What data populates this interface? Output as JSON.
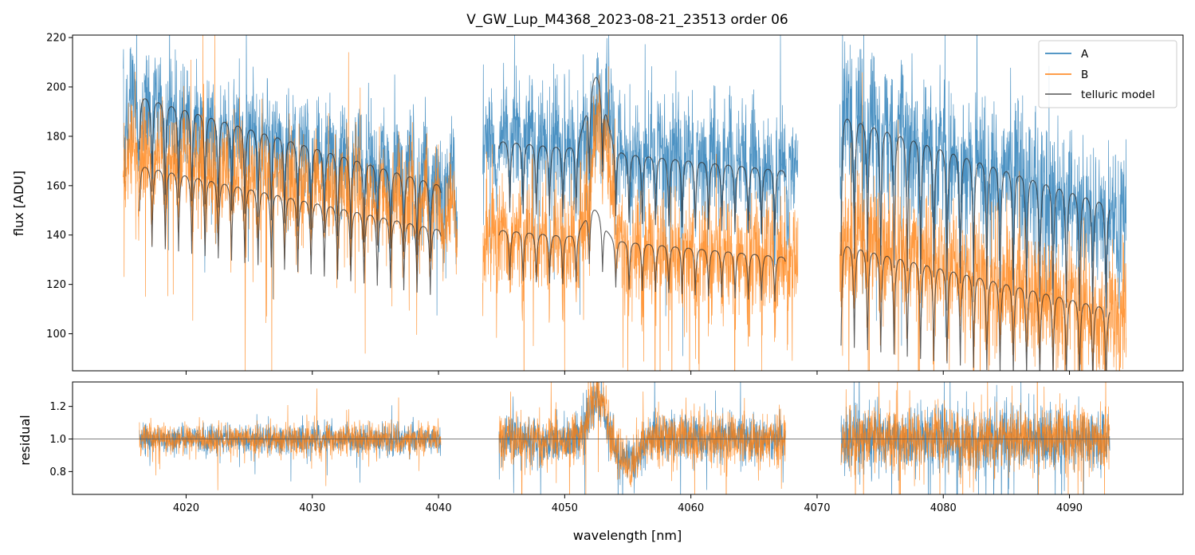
{
  "chart_data": [
    {
      "panel": "top",
      "type": "line",
      "title": "V_GW_Lup_M4368_2023-08-21_23513  order 06",
      "xlabel": "",
      "ylabel": "flux [ADU]",
      "xlim": [
        4011,
        4099
      ],
      "ylim": [
        85,
        221
      ],
      "yticks": [
        100,
        120,
        140,
        160,
        180,
        200,
        220
      ],
      "xticks": [
        4020,
        4030,
        4040,
        4050,
        4060,
        4070,
        4080,
        4090
      ],
      "xtick_labels_shown": false,
      "legend": {
        "position": "top-right",
        "entries": [
          "A",
          "B",
          "telluric model"
        ]
      },
      "colors": {
        "A": "#1f77b4",
        "B": "#ff7f0e",
        "model": "#333333"
      },
      "series": [
        {
          "name": "A",
          "segments": [
            {
              "x_start": 4015.0,
              "x_end": 4041.5,
              "level_start": 195,
              "level_end": 163,
              "noise": 11
            },
            {
              "x_start": 4043.5,
              "x_end": 4068.5,
              "level_start": 183,
              "level_end": 168,
              "noise": 12,
              "bump_center": 4053,
              "bump_height": 20
            },
            {
              "x_start": 4071.8,
              "x_end": 4094.5,
              "level_start": 190,
              "level_end": 148,
              "noise": 15
            }
          ]
        },
        {
          "name": "B",
          "segments": [
            {
              "x_start": 4015.0,
              "x_end": 4041.5,
              "level_start": 176,
              "level_end": 152,
              "noise": 10
            },
            {
              "x_start": 4043.5,
              "x_end": 4068.5,
              "level_start": 143,
              "level_end": 130,
              "noise": 11,
              "bump_center": 4052.8,
              "bump_height": 52
            },
            {
              "x_start": 4071.8,
              "x_end": 4094.5,
              "level_start": 140,
              "level_end": 108,
              "noise": 13
            }
          ]
        },
        {
          "name": "telluric model",
          "segments": [
            {
              "x_start": 4016.3,
              "x_end": 4040.2,
              "level_start": 196,
              "level_end": 160,
              "line_spacing": 1.05,
              "line_depth": 0.19
            },
            {
              "x_start": 4044.8,
              "x_end": 4067.5,
              "level_start": 178,
              "level_end": 166,
              "line_spacing": 1.05,
              "line_depth": 0.16,
              "bump_center": 4052.5,
              "bump_height": 30
            },
            {
              "x_start": 4071.9,
              "x_end": 4093.2,
              "level_start": 188,
              "level_end": 152,
              "line_spacing": 1.05,
              "line_depth": 0.3
            },
            {
              "x_start": 4016.3,
              "x_end": 4040.2,
              "level_start": 168,
              "level_end": 142,
              "line_spacing": 1.05,
              "line_depth": 0.19
            },
            {
              "x_start": 4044.8,
              "x_end": 4067.5,
              "level_start": 142,
              "level_end": 131,
              "line_spacing": 1.05,
              "line_depth": 0.14,
              "bump_center": 4052.3,
              "bump_height": 12
            },
            {
              "x_start": 4071.9,
              "x_end": 4093.2,
              "level_start": 136,
              "level_end": 110,
              "line_spacing": 1.05,
              "line_depth": 0.3
            }
          ]
        }
      ]
    },
    {
      "panel": "bottom",
      "type": "line",
      "xlabel": "wavelength [nm]",
      "ylabel": "residual",
      "xlim": [
        4011,
        4099
      ],
      "ylim": [
        0.66,
        1.35
      ],
      "yticks": [
        0.8,
        1.0,
        1.2
      ],
      "ytick_labels": [
        "0.8",
        "1.0",
        "1.2"
      ],
      "xticks": [
        4020,
        4030,
        4040,
        4050,
        4060,
        4070,
        4080,
        4090
      ],
      "xtick_labels": [
        "4020",
        "4030",
        "4040",
        "4050",
        "4060",
        "4070",
        "4080",
        "4090"
      ],
      "reference_line": 1.0,
      "series": [
        {
          "name": "A",
          "segments": [
            {
              "x_start": 4016.3,
              "x_end": 4040.2,
              "noise": 0.045
            },
            {
              "x_start": 4044.8,
              "x_end": 4067.5,
              "noise": 0.07,
              "bump_center": 4052.6,
              "bump_height": 0.25,
              "dip_center": 4055,
              "dip_height": -0.14
            },
            {
              "x_start": 4071.9,
              "x_end": 4093.2,
              "noise": 0.1
            }
          ]
        },
        {
          "name": "B",
          "segments": [
            {
              "x_start": 4016.3,
              "x_end": 4040.2,
              "noise": 0.05
            },
            {
              "x_start": 4044.8,
              "x_end": 4067.5,
              "noise": 0.08,
              "bump_center": 4052.6,
              "bump_height": 0.3,
              "dip_center": 4055,
              "dip_height": -0.15
            },
            {
              "x_start": 4071.9,
              "x_end": 4093.2,
              "noise": 0.1
            }
          ]
        }
      ]
    }
  ]
}
